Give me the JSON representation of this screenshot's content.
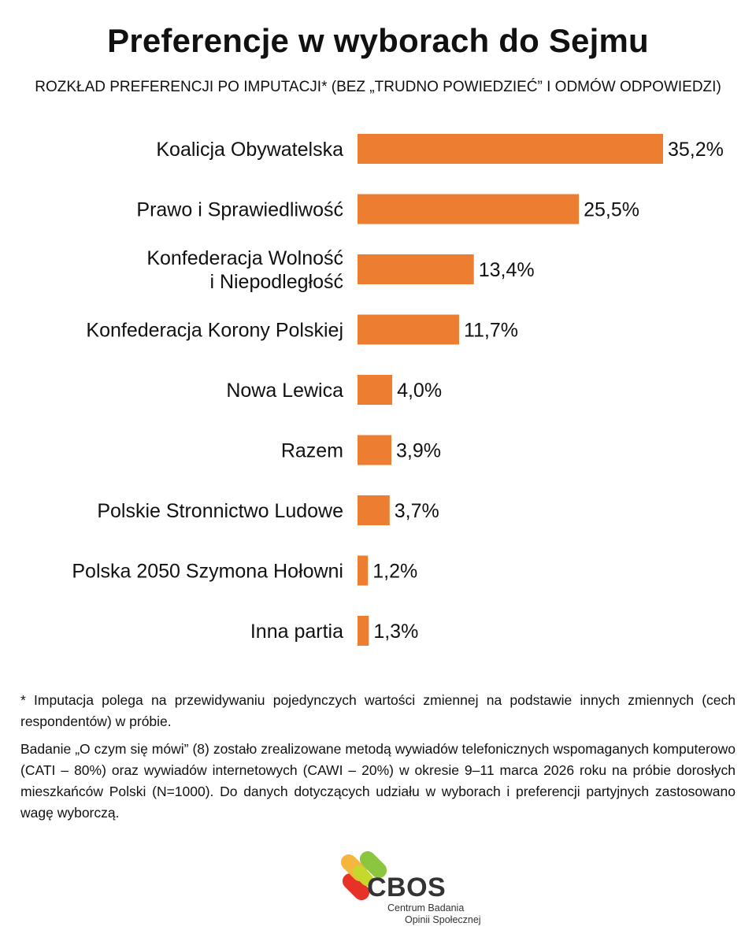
{
  "header": {
    "title": "Preferencje w wyborach do Sejmu",
    "subtitle": "ROZKŁAD PREFERENCJI PO IMPUTACJI* (BEZ „TRUDNO POWIEDZIEĆ” I ODMÓW ODPOWIEDZI)"
  },
  "chart_data": {
    "type": "bar",
    "orientation": "horizontal",
    "title": "Preferencje w wyborach do Sejmu",
    "subtitle": "ROZKŁAD PREFERENCJI PO IMPUTACJI* (BEZ „TRUDNO POWIEDZIEĆ” I ODMÓW ODPOWIEDZI)",
    "categories": [
      [
        "Koalicja Obywatelska"
      ],
      [
        "Prawo i Sprawiedliwość"
      ],
      [
        "Konfederacja Wolność",
        "i Niepodległość"
      ],
      [
        "Konfederacja Korony Polskiej"
      ],
      [
        "Nowa Lewica"
      ],
      [
        "Razem"
      ],
      [
        "Polskie Stronnictwo Ludowe"
      ],
      [
        "Polska 2050 Szymona Hołowni"
      ],
      [
        "Inna partia"
      ]
    ],
    "values": [
      35.2,
      25.5,
      13.4,
      11.7,
      4.0,
      3.9,
      3.7,
      1.2,
      1.3
    ],
    "value_labels": [
      "35,2%",
      "25,5%",
      "13,4%",
      "11,7%",
      "4,0%",
      "3,9%",
      "3,7%",
      "1,2%",
      "1,3%"
    ],
    "bar_color": "#ED7D31",
    "xlim": [
      0,
      35.2
    ],
    "grid": false,
    "legend": "none"
  },
  "footnotes": {
    "imputation": "* Imputacja polega na przewidywaniu pojedynczych wartości zmiennej na podstawie innych zmiennych (cech respondentów) w próbie.",
    "method": "Badanie „O czym się mówi” (8) zostało zrealizowane metodą wywiadów telefonicznych wspomaganych komputerowo (CATI – 80%) oraz wywiadów internetowych (CAWI – 20%) w okresie 9–11 marca 2026 roku na próbie dorosłych mieszkańców Polski (N=1000). Do danych dotyczących udziału w wyborach i preferencji partyjnych zastosowano wagę wyborczą."
  },
  "logo": {
    "name": "CBOS",
    "line1": "Centrum Badania",
    "line2": "Opinii Społecznej",
    "colors": [
      "#E63227",
      "#F4B63D",
      "#8CC63F",
      "#C5D92D"
    ]
  }
}
